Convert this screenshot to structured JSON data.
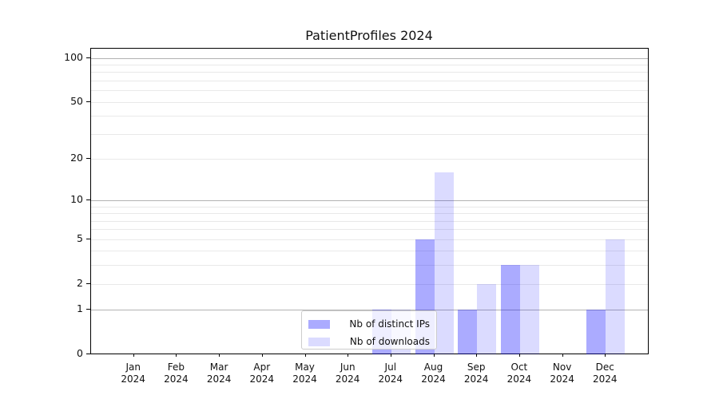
{
  "title": "PatientProfiles 2024",
  "chart_data": {
    "type": "bar",
    "title": "PatientProfiles 2024",
    "categories": [
      "Jan 2024",
      "Feb 2024",
      "Mar 2024",
      "Apr 2024",
      "May 2024",
      "Jun 2024",
      "Jul 2024",
      "Aug 2024",
      "Sep 2024",
      "Oct 2024",
      "Nov 2024",
      "Dec 2024"
    ],
    "series": [
      {
        "name": "Nb of distinct IPs",
        "color": "#0000ff54",
        "color_solid": "#abABfb",
        "values": [
          0,
          0,
          0,
          0,
          0,
          0,
          1,
          5,
          1,
          3,
          0,
          1
        ]
      },
      {
        "name": "Nb of downloads",
        "color": "#0000ff24",
        "color_solid": "#dbdbfc",
        "values": [
          0,
          0,
          0,
          0,
          0,
          0,
          1,
          16,
          2,
          3,
          0,
          5
        ]
      }
    ],
    "xlabel": "",
    "ylabel": "",
    "y_scale": "log1p",
    "ylim": [
      0,
      116
    ],
    "y_ticks_labeled": [
      0,
      1,
      2,
      5,
      10,
      20,
      50,
      100
    ],
    "y_gridlines_major": [
      1,
      10,
      100
    ],
    "y_gridlines_minor": [
      2,
      3,
      4,
      5,
      6,
      7,
      8,
      9,
      20,
      30,
      40,
      50,
      60,
      70,
      80,
      90
    ],
    "grid": "on",
    "legend_position": "lower center",
    "colors": {
      "bar_dark": "#abABfb",
      "bar_light": "#dbdbfc",
      "grid_major": "#b2b2b2",
      "grid_minor": "#e9e9e9",
      "spine": "#000000",
      "legend_border": "#cccccc"
    }
  }
}
